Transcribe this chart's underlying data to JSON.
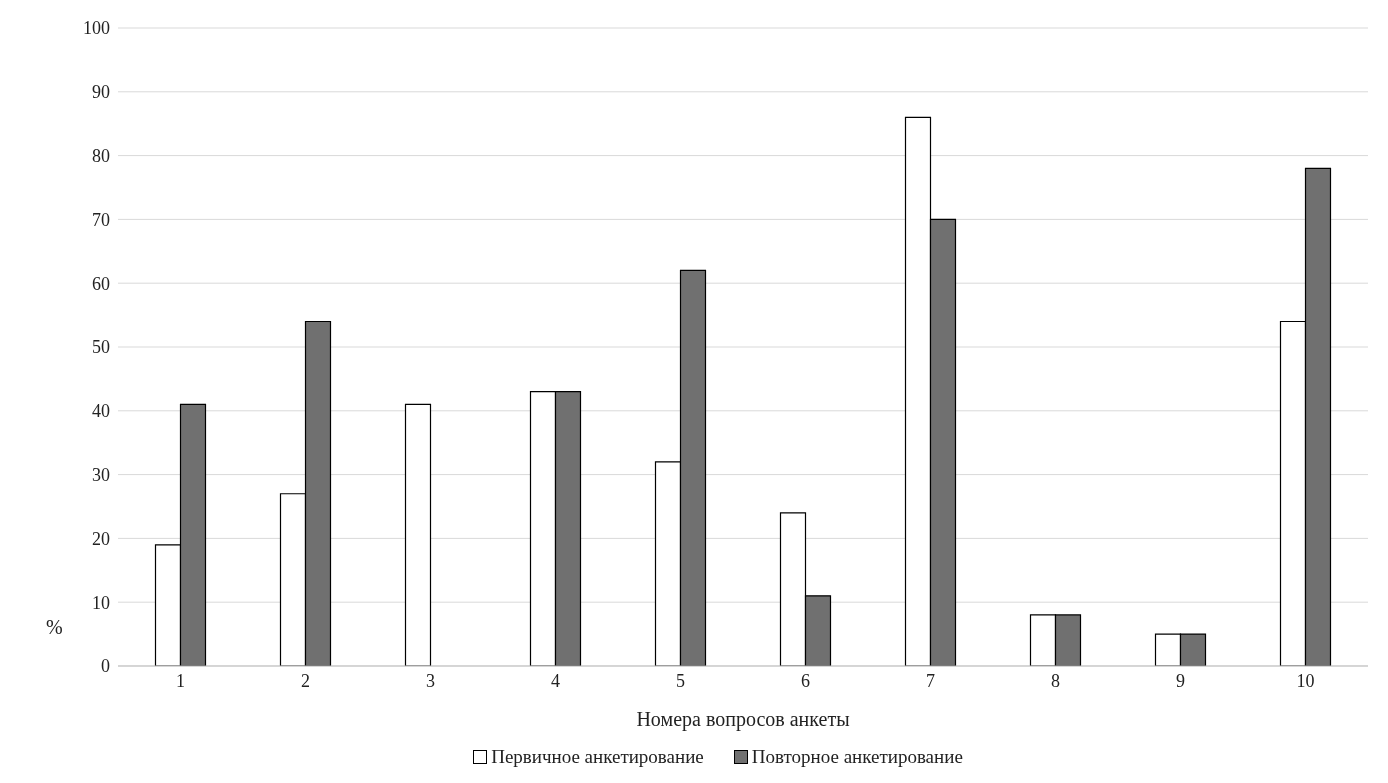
{
  "chart_data": {
    "type": "bar",
    "xlabel": "Номера вопросов анкеты",
    "ylabel": "%",
    "categories": [
      "1",
      "2",
      "3",
      "4",
      "5",
      "6",
      "7",
      "8",
      "9",
      "10"
    ],
    "series": [
      {
        "name": "Первичное анкетирование",
        "color": "#ffffff",
        "values": [
          19,
          27,
          41,
          43,
          32,
          24,
          86,
          8,
          5,
          54
        ]
      },
      {
        "name": "Повторное анкетирование",
        "color": "#707070",
        "values": [
          41,
          54,
          0,
          43,
          62,
          11,
          70,
          8,
          5,
          78
        ]
      }
    ],
    "ylim": [
      0,
      100
    ],
    "yticks": [
      0,
      10,
      20,
      30,
      40,
      50,
      60,
      70,
      80,
      90,
      100
    ],
    "grid": "y",
    "legend": "bottom"
  }
}
